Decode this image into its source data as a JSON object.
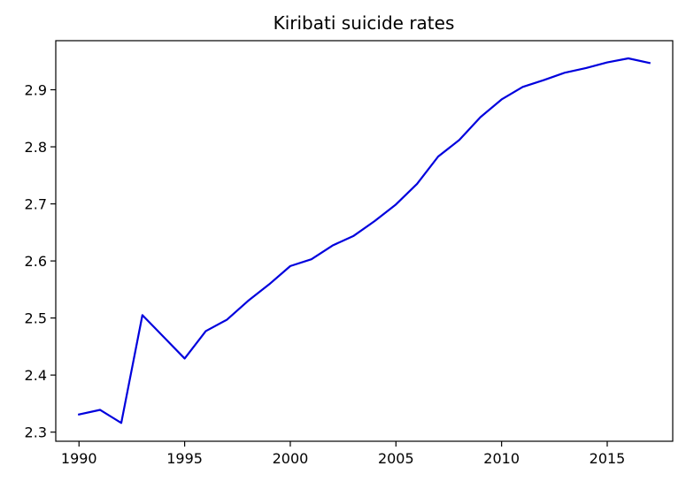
{
  "chart_data": {
    "type": "line",
    "title": "Kiribati suicide rates",
    "xlabel": "",
    "ylabel": "",
    "xlim": [
      1988.9,
      2018.1
    ],
    "ylim": [
      2.284,
      2.986
    ],
    "xticks": [
      1990,
      1995,
      2000,
      2005,
      2010,
      2015
    ],
    "yticks": [
      2.3,
      2.4,
      2.5,
      2.6,
      2.7,
      2.8,
      2.9
    ],
    "grid": false,
    "series": [
      {
        "color": "#0000dd",
        "x": [
          1990,
          1991,
          1992,
          1993,
          1994,
          1995,
          1996,
          1997,
          1998,
          1999,
          2000,
          2001,
          2002,
          2003,
          2004,
          2005,
          2006,
          2007,
          2008,
          2009,
          2010,
          2011,
          2012,
          2013,
          2014,
          2015,
          2016,
          2017
        ],
        "y": [
          2.331,
          2.339,
          2.316,
          2.505,
          2.467,
          2.429,
          2.477,
          2.497,
          2.53,
          2.559,
          2.591,
          2.603,
          2.627,
          2.644,
          2.67,
          2.699,
          2.735,
          2.783,
          2.812,
          2.852,
          2.883,
          2.905,
          2.917,
          2.93,
          2.938,
          2.948,
          2.955,
          2.947
        ]
      }
    ]
  }
}
